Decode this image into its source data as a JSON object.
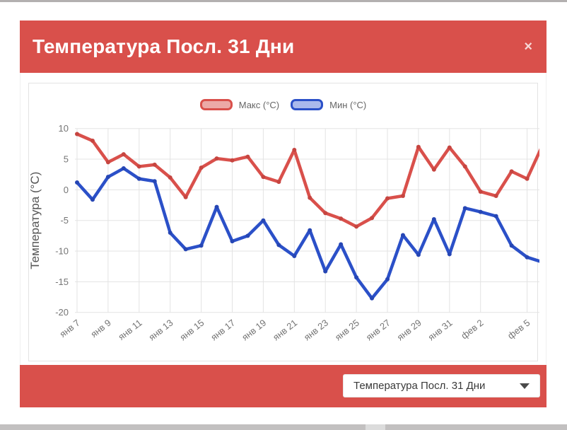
{
  "page": {
    "top_bar_color": "#b3b0b0",
    "bottom_bar_color": "#c2c0c0",
    "background": "#ffffff"
  },
  "modal": {
    "accent_color": "#d9504b",
    "header": {
      "title": "Температура Посл. 31 Дни",
      "close_label": "×"
    },
    "footer": {
      "dropdown": {
        "value": "Температура Посл. 31 Дни"
      }
    }
  },
  "chart_data": {
    "type": "line",
    "title": "",
    "xlabel": "",
    "ylabel": "Температура (°C)",
    "ylim": [
      -20,
      10
    ],
    "y_ticks": [
      10,
      5,
      0,
      -5,
      -10,
      -15,
      -20
    ],
    "grid": true,
    "legend_position": "top",
    "x_tick_labels": [
      "янв 7",
      "янв 9",
      "янв 11",
      "янв 13",
      "янв 15",
      "янв 17",
      "янв 19",
      "янв 21",
      "янв 23",
      "янв 25",
      "янв 27",
      "янв 29",
      "янв 31",
      "фев 2",
      "фев 5"
    ],
    "x_tick_indices": [
      0,
      2,
      4,
      6,
      8,
      10,
      12,
      14,
      16,
      18,
      20,
      22,
      24,
      26,
      29
    ],
    "series": [
      {
        "name": "Макс (°C)",
        "color": "#d9504b",
        "dot_color": "#c64540",
        "legend_fill": "#eca9a7",
        "values": [
          9.1,
          8,
          4.5,
          5.8,
          3.8,
          4.1,
          2,
          -1.2,
          3.6,
          5.1,
          4.8,
          5.4,
          2.1,
          1.3,
          6.5,
          -1.3,
          -3.8,
          -4.7,
          -6,
          -4.6,
          -1.4,
          -1,
          7,
          3.3,
          6.9,
          3.8,
          -0.3,
          -1,
          3,
          1.8,
          7.3
        ]
      },
      {
        "name": "Мин (°C)",
        "color": "#2b50c8",
        "dot_color": "#2646b4",
        "legend_fill": "#aab9ec",
        "values": [
          1.2,
          -1.6,
          2.1,
          3.5,
          1.8,
          1.4,
          -7,
          -9.7,
          -9.1,
          -2.8,
          -8.4,
          -7.5,
          -5,
          -9,
          -10.8,
          -6.6,
          -13.3,
          -8.9,
          -14.3,
          -17.7,
          -14.6,
          -7.4,
          -10.6,
          -4.8,
          -10.5,
          -3,
          -3.6,
          -4.3,
          -9.1,
          -11,
          -11.8
        ]
      }
    ]
  }
}
